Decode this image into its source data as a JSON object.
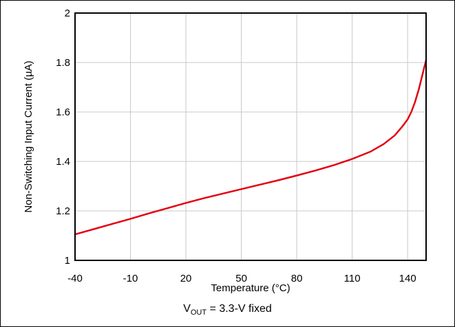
{
  "chart_data": {
    "type": "line",
    "title": "",
    "xlabel": "Temperature (°C)",
    "ylabel": "Non-Switching Input Current (µA)",
    "xlim": [
      -40,
      150
    ],
    "ylim": [
      1,
      2
    ],
    "xticks": [
      -40,
      -10,
      20,
      50,
      80,
      110,
      140
    ],
    "yticks": [
      1,
      1.2,
      1.4,
      1.6,
      1.8,
      2
    ],
    "ytick_labels": [
      "1",
      "1.2",
      "1.4",
      "1.6",
      "1.8",
      "2"
    ],
    "grid": true,
    "series": [
      {
        "color": "#e3000f",
        "x": [
          -40,
          -30,
          -20,
          -10,
          0,
          10,
          20,
          30,
          40,
          50,
          60,
          70,
          80,
          90,
          100,
          110,
          120,
          127,
          133,
          137,
          140,
          142,
          144,
          146,
          148,
          150
        ],
        "y": [
          1.105,
          1.126,
          1.147,
          1.168,
          1.19,
          1.211,
          1.232,
          1.252,
          1.27,
          1.288,
          1.306,
          1.324,
          1.343,
          1.363,
          1.385,
          1.41,
          1.44,
          1.47,
          1.505,
          1.54,
          1.57,
          1.6,
          1.64,
          1.69,
          1.75,
          1.81
        ]
      }
    ],
    "caption": {
      "main": "V",
      "sub": "OUT",
      "rest": " = 3.3-V fixed"
    }
  }
}
